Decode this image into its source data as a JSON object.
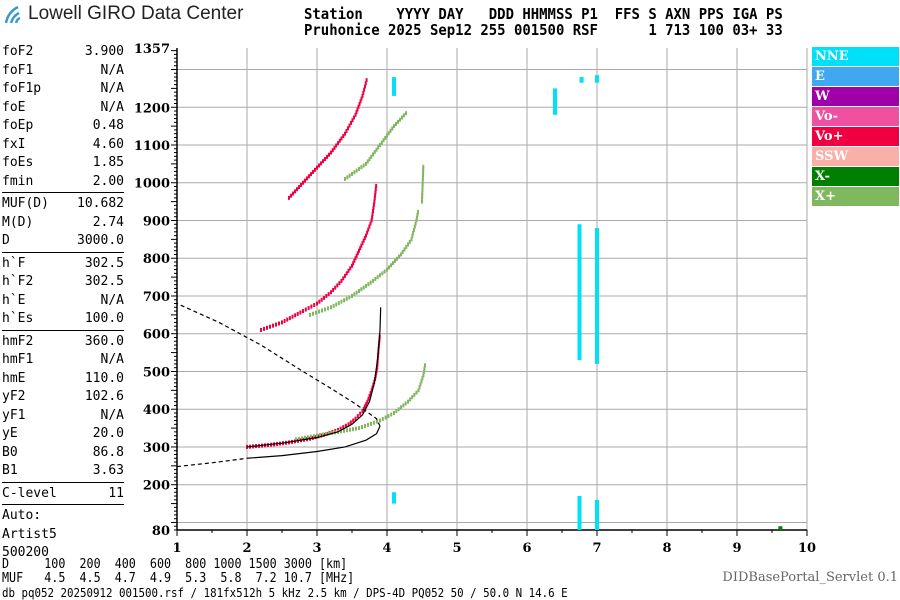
{
  "header": {
    "logo": "Lowell GIRO Data Center",
    "line1": "Station    YYYY DAY   DDD HHMMSS P1  FFS S AXN PPS IGA PS",
    "line2": "Pruhonice 2025 Sep12 255 001500 RSF      1 713 100 03+ 33"
  },
  "params": [
    [
      [
        "foF2",
        "3.900"
      ],
      [
        "foF1",
        "N/A"
      ],
      [
        "foF1p",
        "N/A"
      ],
      [
        "foE",
        "N/A"
      ],
      [
        "foEp",
        "0.48"
      ],
      [
        "fxI",
        "4.60"
      ],
      [
        "foEs",
        "1.85"
      ],
      [
        "fmin",
        "2.00"
      ]
    ],
    [
      [
        "MUF(D)",
        "10.682"
      ],
      [
        "M(D)",
        "2.74"
      ],
      [
        "D",
        "3000.0"
      ]
    ],
    [
      [
        "h`F",
        "302.5"
      ],
      [
        "h`F2",
        "302.5"
      ],
      [
        "h`E",
        "N/A"
      ],
      [
        "h`Es",
        "100.0"
      ]
    ],
    [
      [
        "hmF2",
        "360.0"
      ],
      [
        "hmF1",
        "N/A"
      ],
      [
        "hmE",
        "110.0"
      ],
      [
        "yF2",
        "102.6"
      ],
      [
        "yF1",
        "N/A"
      ],
      [
        "yE",
        "20.0"
      ],
      [
        "B0",
        "86.8"
      ],
      [
        "B1",
        "3.63"
      ]
    ],
    [
      [
        "C-level",
        "11"
      ]
    ]
  ],
  "auto": [
    "Auto:",
    "Artist5",
    "500200"
  ],
  "legend": [
    {
      "label": "NNE",
      "color": "#00e0f8"
    },
    {
      "label": "E",
      "color": "#40a8f0"
    },
    {
      "label": "W",
      "color": "#a000a8"
    },
    {
      "label": "Vo-",
      "color": "#f050a0"
    },
    {
      "label": "Vo+",
      "color": "#f00040"
    },
    {
      "label": "SSW",
      "color": "#f8b0a8"
    },
    {
      "label": "X-",
      "color": "#008000"
    },
    {
      "label": "X+",
      "color": "#80b860"
    }
  ],
  "footer": {
    "d_row": "D     100  200  400  600  800 1000 1500 3000 [km]",
    "muf_row": "MUF   4.5  4.5  4.7  4.9  5.3  5.8  7.2 10.7 [MHz]",
    "info": "db pq052 20250912 001500.rsf / 181fx512h 5 kHz 2.5 km / DPS-4D PQ052 50 / 50.0 N 14.6 E",
    "servlet": "DIDBasePortal_Servlet 0.1"
  },
  "chart_data": {
    "type": "scatter",
    "xlim": [
      1,
      10
    ],
    "ylim": [
      80,
      1357
    ],
    "xticks": [
      "1",
      "2",
      "3",
      "4",
      "5",
      "6",
      "7",
      "8",
      "9",
      "10"
    ],
    "yticks": [
      "1357",
      "1200",
      "1100",
      "1000",
      "900",
      "800",
      "700",
      "600",
      "500",
      "400",
      "300",
      "200",
      "80"
    ],
    "grid": true,
    "traces": [
      {
        "dir": "Vo+",
        "points": [
          [
            2.0,
            300
          ],
          [
            2.3,
            305
          ],
          [
            2.6,
            312
          ],
          [
            2.9,
            322
          ],
          [
            3.1,
            332
          ],
          [
            3.3,
            345
          ],
          [
            3.45,
            360
          ],
          [
            3.55,
            375
          ],
          [
            3.65,
            395
          ],
          [
            3.72,
            420
          ],
          [
            3.78,
            450
          ],
          [
            3.83,
            480
          ],
          [
            3.86,
            510
          ],
          [
            3.88,
            560
          ],
          [
            3.9,
            600
          ]
        ]
      },
      {
        "dir": "Vo+",
        "points": [
          [
            2.2,
            610
          ],
          [
            2.5,
            630
          ],
          [
            2.8,
            660
          ],
          [
            3.0,
            680
          ],
          [
            3.2,
            710
          ],
          [
            3.35,
            740
          ],
          [
            3.5,
            780
          ],
          [
            3.6,
            820
          ],
          [
            3.7,
            860
          ],
          [
            3.78,
            900
          ],
          [
            3.82,
            950
          ],
          [
            3.85,
            1000
          ]
        ]
      },
      {
        "dir": "Vo+",
        "points": [
          [
            2.6,
            960
          ],
          [
            2.8,
            1000
          ],
          [
            3.0,
            1040
          ],
          [
            3.2,
            1080
          ],
          [
            3.4,
            1130
          ],
          [
            3.55,
            1180
          ],
          [
            3.65,
            1230
          ],
          [
            3.72,
            1280
          ]
        ]
      },
      {
        "dir": "X+",
        "points": [
          [
            2.7,
            320
          ],
          [
            3.0,
            330
          ],
          [
            3.3,
            340
          ],
          [
            3.6,
            350
          ],
          [
            3.9,
            370
          ],
          [
            4.1,
            390
          ],
          [
            4.3,
            420
          ],
          [
            4.45,
            450
          ],
          [
            4.52,
            490
          ],
          [
            4.55,
            525
          ]
        ]
      },
      {
        "dir": "X+",
        "points": [
          [
            2.9,
            650
          ],
          [
            3.2,
            670
          ],
          [
            3.5,
            700
          ],
          [
            3.8,
            740
          ],
          [
            4.0,
            770
          ],
          [
            4.2,
            810
          ],
          [
            4.35,
            850
          ],
          [
            4.42,
            900
          ],
          [
            4.45,
            930
          ]
        ]
      },
      {
        "dir": "X+",
        "points": [
          [
            3.4,
            1010
          ],
          [
            3.7,
            1050
          ],
          [
            3.9,
            1100
          ],
          [
            4.1,
            1150
          ],
          [
            4.3,
            1190
          ]
        ]
      },
      {
        "dir": "X+",
        "points": [
          [
            4.5,
            950
          ],
          [
            4.52,
            1050
          ]
        ]
      }
    ],
    "bars": [
      {
        "dir": "NNE",
        "freq": 6.75,
        "from": 530,
        "to": 890
      },
      {
        "dir": "NNE",
        "freq": 7.0,
        "from": 520,
        "to": 880
      },
      {
        "dir": "NNE",
        "freq": 6.75,
        "from": 80,
        "to": 170
      },
      {
        "dir": "NNE",
        "freq": 7.0,
        "from": 80,
        "to": 160
      },
      {
        "dir": "NNE",
        "freq": 4.1,
        "from": 150,
        "to": 180
      },
      {
        "dir": "NNE",
        "freq": 6.4,
        "from": 1180,
        "to": 1250
      },
      {
        "dir": "NNE",
        "freq": 4.1,
        "from": 1230,
        "to": 1280
      },
      {
        "dir": "NNE",
        "freq": 6.78,
        "from": 1265,
        "to": 1280
      },
      {
        "dir": "NNE",
        "freq": 7.0,
        "from": 1265,
        "to": 1285
      },
      {
        "dir": "X-",
        "freq": 9.62,
        "from": 80,
        "to": 90
      }
    ],
    "profile": [
      [
        2.0,
        270
      ],
      [
        2.5,
        277
      ],
      [
        3.0,
        288
      ],
      [
        3.4,
        300
      ],
      [
        3.7,
        318
      ],
      [
        3.85,
        335
      ],
      [
        3.9,
        355
      ],
      [
        3.85,
        375
      ],
      [
        3.7,
        395
      ],
      [
        3.5,
        420
      ],
      [
        3.2,
        455
      ],
      [
        2.8,
        500
      ],
      [
        2.2,
        570
      ],
      [
        1.6,
        630
      ],
      [
        1.0,
        680
      ]
    ],
    "model_trace": [
      [
        2.0,
        300
      ],
      [
        2.5,
        310
      ],
      [
        3.0,
        325
      ],
      [
        3.3,
        340
      ],
      [
        3.5,
        360
      ],
      [
        3.65,
        385
      ],
      [
        3.75,
        420
      ],
      [
        3.82,
        470
      ],
      [
        3.87,
        540
      ],
      [
        3.9,
        610
      ],
      [
        3.91,
        670
      ]
    ],
    "bottomside_dashed": [
      [
        1.0,
        248
      ],
      [
        1.5,
        258
      ],
      [
        2.0,
        270
      ]
    ]
  }
}
